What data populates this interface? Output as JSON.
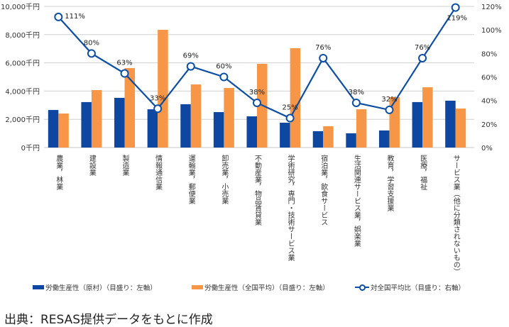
{
  "chart_data": {
    "type": "bar",
    "title": "",
    "categories": [
      "農業，林業",
      "建設業",
      "製造業",
      "情報通信業",
      "運輸業，郵便業",
      "卸売業，小売業",
      "不動産業，物品賃貸業",
      "学術研究，専門・技術サービス業",
      "宿泊業，飲食サービス",
      "生活関連サービス業，娯楽業",
      "教育，学習支援業",
      "医療，福祉",
      "サービス業（他に分類されないもの）"
    ],
    "series": [
      {
        "name": "労働生産性（原村）（目盛り：左軸）",
        "type": "bar",
        "axis": "left",
        "color": "#0d47a1",
        "values": [
          2660,
          3220,
          3520,
          2710,
          3070,
          2510,
          2210,
          1760,
          1160,
          1010,
          1210,
          3220,
          3320
        ]
      },
      {
        "name": "労働生産性（全国平均）（目盛り：左軸）",
        "type": "bar",
        "axis": "left",
        "color": "#f79646",
        "values": [
          2410,
          4070,
          5630,
          8340,
          4470,
          4220,
          5930,
          7040,
          1510,
          2710,
          3570,
          4270,
          2760
        ]
      },
      {
        "name": "対全国平均比（目盛り：右軸）",
        "type": "line",
        "axis": "right",
        "color": "#0d4fa3",
        "values": [
          111,
          80,
          63,
          33,
          69,
          60,
          38,
          25,
          76,
          38,
          32,
          76,
          119
        ],
        "labels": [
          "111%",
          "80%",
          "63%",
          "33%",
          "69%",
          "60%",
          "38%",
          "25%",
          "76%",
          "38%",
          "32%",
          "76%",
          "119%"
        ]
      }
    ],
    "left_axis": {
      "ylim": [
        0,
        10000
      ],
      "ticks": [
        0,
        2000,
        4000,
        6000,
        8000,
        10000
      ],
      "tick_labels": [
        "0千円",
        "2,000千円",
        "4,000千円",
        "6,000千円",
        "8,000千円",
        "10,000千円"
      ]
    },
    "right_axis": {
      "ylim": [
        0,
        120
      ],
      "ticks": [
        0,
        20,
        40,
        60,
        80,
        100,
        120
      ],
      "tick_labels": [
        "0%",
        "20%",
        "40%",
        "60%",
        "80%",
        "100%",
        "120%"
      ]
    },
    "grid": true,
    "legend_position": "bottom",
    "xlabel": "",
    "ylabel": ""
  },
  "legend": {
    "items": [
      {
        "label": "労働生産性（原村）（目盛り：左軸）",
        "color": "#0d47a1"
      },
      {
        "label": "労働生産性（全国平均）（目盛り：左軸）",
        "color": "#f79646"
      },
      {
        "label": "対全国平均比（目盛り：右軸）",
        "color": "#0d4fa3"
      }
    ]
  },
  "source": "出典：RESAS提供データをもとに作成"
}
